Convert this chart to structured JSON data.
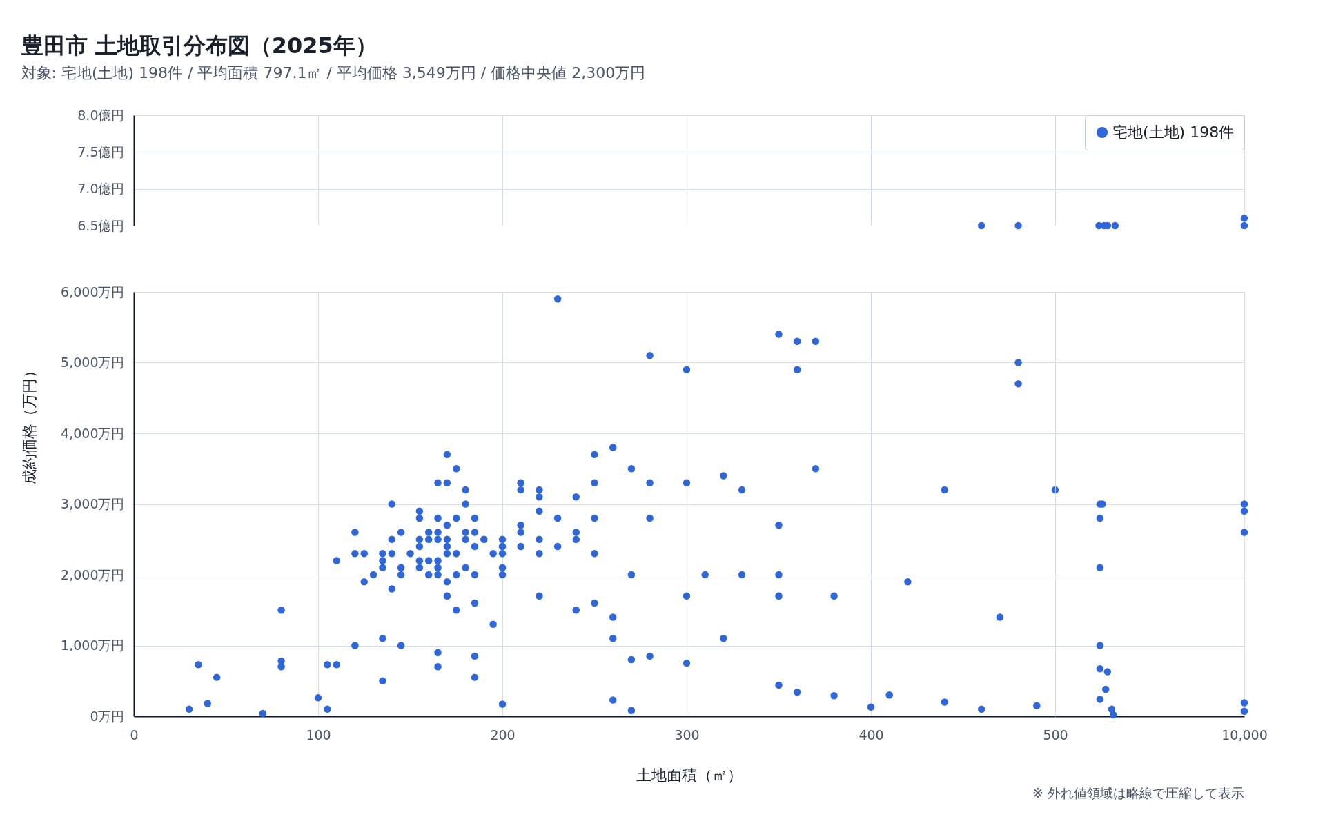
{
  "chart_data": [
    {
      "type": "scatter",
      "title": "豊田市 土地取引分布図（2025年）",
      "subtitle": "対象: 宅地(土地) 198件 / 平均面積 797.1㎡ / 平均価格 3,549万円 / 価格中央値 2,300万円",
      "xlim": [
        0,
        500
      ],
      "xticks": [
        0,
        100,
        200,
        300,
        400
      ],
      "ylim": [
        6.5,
        8.0
      ],
      "yticks": [
        {
          "value": 6.5,
          "label": "6.5億円"
        },
        {
          "value": 7.0,
          "label": "7.0億円"
        },
        {
          "value": 7.5,
          "label": "7.5億円"
        },
        {
          "value": 8.0,
          "label": "8.0億円"
        }
      ],
      "grid": true,
      "marker": "circle",
      "tick_labels": "y",
      "series": [
        {
          "color": "#2f66d8",
          "x": [
            460,
            480
          ],
          "values": [
            6.5,
            6.5
          ]
        }
      ]
    },
    {
      "type": "scatter",
      "xlim": [
        500,
        10000
      ],
      "xticks": [
        500,
        10000
      ],
      "ylim": [
        6.5,
        8.0
      ],
      "yticks": [
        6.5,
        7.0,
        7.5,
        8.0
      ],
      "grid": true,
      "marker": "circle",
      "tick_labels": false,
      "legend": "top right",
      "series": [
        {
          "name": "宅地(土地) 198件",
          "color": "#2f66d8",
          "x": [
            2700,
            2960,
            3130,
            3510,
            10000,
            10000
          ],
          "values": [
            6.5,
            6.5,
            6.5,
            6.5,
            6.6,
            6.5
          ]
        }
      ]
    },
    {
      "type": "scatter",
      "xlabel": "土地面積（㎡）",
      "ylabel": "成約価格（万円）",
      "xlim": [
        0,
        500
      ],
      "xticks": [
        0,
        100,
        200,
        300,
        400
      ],
      "ylim": [
        0,
        6000
      ],
      "yticks": [
        {
          "value": 0,
          "label": "0万円"
        },
        {
          "value": 1000,
          "label": "1,000万円"
        },
        {
          "value": 2000,
          "label": "2,000万円"
        },
        {
          "value": 3000,
          "label": "3,000万円"
        },
        {
          "value": 4000,
          "label": "4,000万円"
        },
        {
          "value": 5000,
          "label": "5,000万円"
        },
        {
          "value": 6000,
          "label": "6,000万円"
        }
      ],
      "grid": true,
      "marker": "circle",
      "series": [
        {
          "color": "#2f66d8",
          "x": [
            30,
            35,
            40,
            45,
            70,
            80,
            80,
            80,
            100,
            105,
            105,
            110,
            110,
            120,
            120,
            120,
            125,
            125,
            130,
            135,
            135,
            135,
            135,
            135,
            140,
            140,
            140,
            140,
            145,
            145,
            145,
            145,
            150,
            155,
            155,
            155,
            155,
            155,
            155,
            160,
            160,
            160,
            160,
            165,
            165,
            165,
            165,
            165,
            165,
            165,
            165,
            165,
            170,
            170,
            170,
            170,
            170,
            170,
            170,
            170,
            175,
            175,
            175,
            175,
            175,
            180,
            180,
            180,
            180,
            180,
            185,
            185,
            185,
            185,
            185,
            185,
            185,
            190,
            195,
            195,
            200,
            200,
            200,
            200,
            200,
            200,
            210,
            210,
            210,
            210,
            210,
            220,
            220,
            220,
            220,
            220,
            220,
            230,
            230,
            230,
            240,
            240,
            240,
            240,
            250,
            250,
            250,
            250,
            250,
            260,
            260,
            260,
            260,
            270,
            270,
            270,
            270,
            280,
            280,
            280,
            280,
            300,
            300,
            300,
            300,
            310,
            320,
            320,
            330,
            330,
            350,
            350,
            350,
            350,
            350,
            360,
            360,
            360,
            370,
            370,
            380,
            380,
            400,
            410,
            420,
            440,
            440,
            460,
            470,
            480,
            480,
            490,
            500
          ],
          "values": [
            100,
            730,
            180,
            550,
            40,
            1500,
            780,
            700,
            260,
            100,
            730,
            730,
            2200,
            2600,
            2300,
            1000,
            2300,
            1900,
            2000,
            2300,
            2200,
            2100,
            1100,
            500,
            3000,
            2500,
            2300,
            1800,
            2600,
            2100,
            2000,
            1000,
            2300,
            2900,
            2800,
            2500,
            2400,
            2200,
            2100,
            2600,
            2500,
            2200,
            2000,
            3300,
            2800,
            2600,
            2500,
            2200,
            2100,
            2000,
            900,
            700,
            3700,
            3300,
            2700,
            2500,
            2400,
            2300,
            1900,
            1700,
            3500,
            2800,
            2300,
            2000,
            1500,
            3200,
            3000,
            2600,
            2500,
            2100,
            2800,
            2600,
            2400,
            2000,
            1600,
            850,
            550,
            2500,
            2300,
            1300,
            2500,
            2400,
            2300,
            2100,
            2000,
            170,
            3300,
            3200,
            2700,
            2600,
            2400,
            3200,
            3100,
            2900,
            2500,
            2300,
            1700,
            5900,
            2800,
            2400,
            3100,
            2600,
            2500,
            1500,
            3700,
            3300,
            2800,
            2300,
            1600,
            3800,
            1400,
            1100,
            230,
            3500,
            2000,
            800,
            80,
            5100,
            3300,
            2800,
            850,
            4900,
            3300,
            1700,
            750,
            2000,
            3400,
            1100,
            3200,
            2000,
            5400,
            2700,
            2000,
            1700,
            440,
            5300,
            4900,
            340,
            5300,
            3500,
            1700,
            290,
            130,
            300,
            1900,
            3200,
            200,
            100,
            1400,
            5000,
            4700,
            150,
            3200
          ]
        }
      ]
    },
    {
      "type": "scatter",
      "annotations": [
        "※ 外れ値領域は略線で圧縮して表示"
      ],
      "xlim": [
        500,
        10000
      ],
      "xticks": [
        500,
        {
          "value": 10000,
          "label": "10,000"
        }
      ],
      "ylim": [
        0,
        6000
      ],
      "yticks": [
        0,
        1000,
        2000,
        3000,
        4000,
        5000,
        6000
      ],
      "grid": true,
      "marker": "circle",
      "tick_labels": "x",
      "series": [
        {
          "color": "#2f66d8",
          "x": [
            2750,
            2870,
            2750,
            2750,
            2750,
            2750,
            3130,
            3040,
            2750,
            3340,
            3420,
            10000,
            10000,
            10000,
            10000,
            10000
          ],
          "values": [
            3000,
            3000,
            2800,
            2100,
            1000,
            670,
            630,
            380,
            240,
            100,
            20,
            3000,
            2900,
            2600,
            190,
            70
          ]
        }
      ]
    }
  ]
}
